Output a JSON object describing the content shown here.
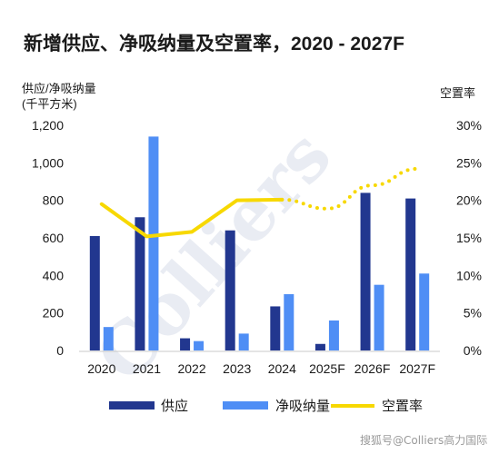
{
  "chart_data": {
    "type": "bar",
    "title": "新增供应、净吸纳量及空置率，2020 - 2027F",
    "ylabel": "供应/净吸纳量",
    "ylabel_unit": "(千平方米)",
    "y2label": "空置率",
    "categories": [
      "2020",
      "2021",
      "2022",
      "2023",
      "2024",
      "2025F",
      "2026F",
      "2027F"
    ],
    "ylim": [
      0,
      1200
    ],
    "yticks": [
      "0",
      "200",
      "400",
      "600",
      "800",
      "1,000",
      "1,200"
    ],
    "y2lim": [
      0,
      30
    ],
    "y2ticks": [
      "0%",
      "5%",
      "10%",
      "15%",
      "20%",
      "25%",
      "30%"
    ],
    "series": [
      {
        "name": "供应",
        "type": "bar",
        "color": "#22378f",
        "values": [
          610,
          710,
          65,
          640,
          235,
          35,
          840,
          810
        ]
      },
      {
        "name": "净吸纳量",
        "type": "bar",
        "color": "#4f8ef5",
        "values": [
          125,
          1140,
          50,
          90,
          300,
          160,
          350,
          410
        ]
      },
      {
        "name": "空置率",
        "type": "line",
        "axis": "right",
        "color": "#f7d800",
        "values": [
          19.5,
          15.2,
          15.8,
          20.0,
          20.1,
          18.9,
          22.0,
          24.2
        ],
        "forecast_from_index": 4
      }
    ],
    "legend_position": "bottom",
    "grid": false
  },
  "watermark": "搜狐号@Colliers高力国际",
  "background_watermark": "Colliers"
}
